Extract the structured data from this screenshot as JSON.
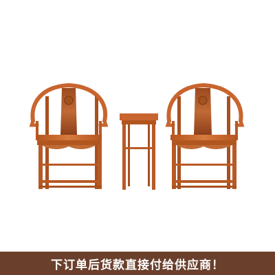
{
  "banner": {
    "text": "下订单后货款直接付给供应商！"
  },
  "colors": {
    "banner_bg": "#6a3f2c",
    "banner_text": "#ffffff",
    "wood": "#c8652e",
    "wood_dark": "#8e3f1a",
    "wood_light": "#d98448",
    "background": "#ffffff"
  },
  "photo": {
    "subject": "chair-and-side-table-set"
  }
}
